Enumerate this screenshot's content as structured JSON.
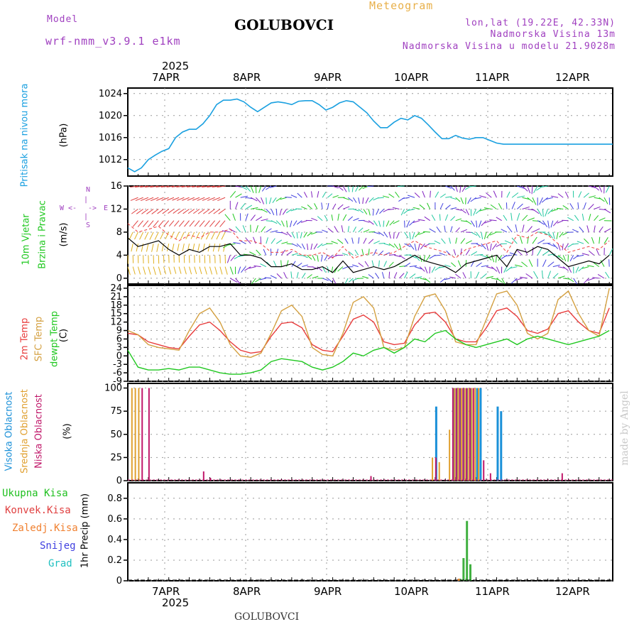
{
  "header": {
    "model_label": "Model",
    "model_name": "wrf-nmm_v3.9.1 e1km",
    "station": "GOLUBOVCI",
    "meteogram_label": "Meteogram",
    "lonlat": "lon,lat (19.22E, 42.33N)",
    "altitude": "Nadmorska Visina 13m",
    "altitude_model": "Nadmorska Visina u modelu 21.9028m"
  },
  "footer": {
    "station": "GOLUBOVCI"
  },
  "watermark": "made by Angel",
  "days": {
    "year": "2025",
    "labels": [
      "7APR",
      "8APR",
      "9APR",
      "10APR",
      "11APR",
      "12APR"
    ]
  },
  "colors": {
    "pressure": "#1aa0e0",
    "temp2m": "#e83c3c",
    "sfc": "#d4a040",
    "dewpt": "#20c820",
    "cloud_high": "#1a90d8",
    "cloud_mid": "#e0a030",
    "cloud_low": "#c0186a",
    "precip_total": "#40b040",
    "precip_conv": "#e04040",
    "precip_frozen": "#f08030",
    "snow": "#4040e0",
    "graupel": "#20c0c0",
    "wind_speed": "#000000",
    "gust": "#f04040"
  },
  "labels": {
    "pressure": "Pritisak na nivou mora",
    "pressure_unit": "(hPa)",
    "wind1": "10m Vjetar",
    "wind2": "Brzina i Pravac",
    "wind_unit": "(m/s)",
    "compass_n": "N",
    "compass_w": "W",
    "compass_e": "E",
    "compass_s": "S",
    "temp": "2m Temp",
    "sfc": "SFC Temp",
    "dew": "dewpt Temp",
    "temp_unit": "(C)",
    "cl_high": "Visoka Oblacnost",
    "cl_mid": "Srednja Oblacnost",
    "cl_low": "Niska Oblacnost",
    "cloud_unit": "(%)",
    "prec_total": "Ukupna Kisa",
    "prec_conv": "Konvek.Kisa",
    "prec_frozen": "Zaledj.Kisa",
    "prec_snow": "Snijeg",
    "prec_grad": "Grad",
    "prec_unit": "1hr Precip (mm)"
  },
  "chart_data": [
    {
      "type": "line",
      "panel": "pressure",
      "x": [
        0,
        2,
        4,
        6,
        8,
        10,
        12,
        14,
        16,
        18,
        20,
        22,
        24,
        26,
        28,
        30,
        32,
        34,
        36,
        38,
        40,
        42,
        44,
        46,
        48,
        50,
        52,
        54,
        56,
        58,
        60,
        62,
        64,
        66,
        68,
        70,
        72,
        74,
        76,
        78,
        80,
        82,
        84,
        86,
        88,
        90,
        92,
        94,
        96,
        98,
        100,
        102,
        104,
        106,
        108,
        110,
        112,
        114,
        116,
        118,
        120,
        122,
        124,
        126,
        128,
        130,
        132,
        134,
        136,
        138,
        140,
        142
      ],
      "series": [
        {
          "values": [
            1010.5,
            1009.8,
            1010.5,
            1012,
            1012.8,
            1013.5,
            1014,
            1016,
            1017,
            1017.5,
            1017.5,
            1018.5,
            1020,
            1022,
            1022.8,
            1022.8,
            1023,
            1022.5,
            1021.5,
            1020.7,
            1021.5,
            1022.3,
            1022.5,
            1022.3,
            1022.0,
            1022.6,
            1022.7,
            1022.7,
            1022.0,
            1021.0,
            1021.5,
            1022.3,
            1022.7,
            1022.5,
            1021.5,
            1020.5,
            1019.0,
            1017.8,
            1017.8,
            1018.8,
            1019.5,
            1019.2,
            1020,
            1019.5,
            1018.3,
            1017,
            1015.8,
            1015.8,
            1016.4,
            1015.9,
            1015.7,
            1016,
            1016,
            1015.5,
            1015.0,
            1014.8,
            1014.8,
            1014.8,
            1014.8,
            1014.8,
            1014.8,
            1014.8,
            1014.8,
            1014.8,
            1014.8,
            1014.8,
            1014.8,
            1014.8,
            1014.8,
            1014.8,
            1014.8,
            1014.8
          ]
        }
      ],
      "xlim": [
        0,
        142
      ],
      "ylim": [
        1009,
        1025
      ],
      "yticks": [
        1012,
        1016,
        1020,
        1024
      ],
      "grid": true
    },
    {
      "type": "line",
      "panel": "wind",
      "x": [
        0,
        3,
        6,
        9,
        12,
        15,
        18,
        21,
        24,
        27,
        30,
        33,
        36,
        39,
        42,
        45,
        48,
        51,
        54,
        57,
        60,
        63,
        66,
        69,
        72,
        75,
        78,
        81,
        84,
        87,
        90,
        93,
        96,
        99,
        102,
        105,
        108,
        111,
        114,
        117,
        120,
        123,
        126,
        129,
        132,
        135,
        138,
        141
      ],
      "series": [
        {
          "values": [
            7,
            5.5,
            6,
            6.5,
            5,
            4,
            5,
            4.5,
            5.5,
            5.5,
            6,
            4,
            4,
            3.5,
            2,
            2,
            2.5,
            1.5,
            1.5,
            2,
            1,
            3,
            1,
            1.5,
            2,
            1.5,
            2,
            3,
            4,
            3,
            2.5,
            2,
            1,
            2.5,
            3,
            3.5,
            4,
            2,
            5,
            4.5,
            5.5,
            5,
            3.5,
            2,
            2.5,
            3,
            2.5,
            4
          ]
        }
      ],
      "xlim": [
        0,
        142
      ],
      "ylim": [
        -1,
        16
      ],
      "yticks": [
        0,
        4,
        8,
        12,
        16
      ],
      "grid": true
    },
    {
      "type": "line",
      "panel": "temperature",
      "x": [
        0,
        3,
        6,
        9,
        12,
        15,
        18,
        21,
        24,
        27,
        30,
        33,
        36,
        39,
        42,
        45,
        48,
        51,
        54,
        57,
        60,
        63,
        66,
        69,
        72,
        75,
        78,
        81,
        84,
        87,
        90,
        93,
        96,
        99,
        102,
        105,
        108,
        111,
        114,
        117,
        120,
        123,
        126,
        129,
        132,
        135,
        138,
        141
      ],
      "series": [
        {
          "name": "2m Temp",
          "values": [
            8,
            7.5,
            5,
            4,
            3,
            2.5,
            7,
            11,
            12,
            9,
            5,
            2,
            1,
            1.5,
            7,
            11.5,
            12,
            10,
            4,
            2,
            1.5,
            7,
            13,
            14.5,
            12,
            5,
            4,
            4.5,
            11,
            15,
            15.5,
            12,
            6,
            5,
            5,
            10,
            16,
            17,
            14,
            9,
            8,
            9.5,
            15,
            16,
            12,
            9,
            8,
            17
          ]
        },
        {
          "name": "SFC Temp",
          "values": [
            9,
            7.5,
            4,
            3,
            2.5,
            2,
            9,
            15,
            17,
            12,
            4,
            0,
            -0.5,
            1,
            8,
            16,
            18,
            14,
            3,
            0.5,
            0,
            8,
            19,
            21,
            17,
            3,
            2,
            3,
            14,
            21,
            22,
            16,
            5,
            4,
            4,
            13,
            22,
            23,
            18,
            8,
            6,
            8,
            20,
            23,
            15,
            9,
            7,
            24
          ]
        },
        {
          "name": "dewpt Temp",
          "values": [
            2,
            -4,
            -5,
            -5,
            -4.5,
            -5,
            -4,
            -4,
            -5,
            -6,
            -6.5,
            -6.5,
            -6,
            -5,
            -2,
            -1,
            -1.5,
            -2,
            -4,
            -5,
            -4,
            -2,
            1,
            0,
            2,
            3,
            1,
            3,
            6,
            5,
            8,
            9,
            6,
            4,
            3,
            4,
            5,
            6,
            4,
            6,
            7,
            6,
            5,
            4,
            5,
            6,
            7,
            9
          ]
        }
      ],
      "xlim": [
        0,
        142
      ],
      "ylim": [
        -9,
        25
      ],
      "yticks": [
        -9,
        -6,
        -3,
        0,
        3,
        6,
        9,
        12,
        15,
        18,
        21,
        24
      ],
      "grid": true
    },
    {
      "type": "bar",
      "panel": "cloud",
      "series": [
        {
          "name": "Visoka Oblacnost",
          "x": [
            90,
            95,
            96,
            97,
            98,
            99,
            100,
            102,
            103,
            108,
            109
          ],
          "values": [
            80,
            100,
            100,
            100,
            100,
            100,
            100,
            100,
            100,
            80,
            75
          ]
        },
        {
          "name": "Srednja Oblacnost",
          "x": [
            1,
            2,
            3,
            89,
            91,
            94,
            95.5,
            96.5,
            97.5,
            98.5,
            99.5,
            100.5,
            101.5,
            102.5
          ],
          "values": [
            100,
            100,
            100,
            25,
            20,
            55,
            100,
            100,
            100,
            100,
            100,
            100,
            100,
            100
          ]
        },
        {
          "name": "Niska Oblacnost",
          "x": [
            4,
            6,
            22,
            24,
            71,
            90,
            95,
            96,
            97,
            98,
            99,
            100,
            101,
            104,
            106,
            127
          ],
          "values": [
            100,
            100,
            10,
            3,
            5,
            25,
            100,
            100,
            100,
            100,
            100,
            100,
            100,
            22,
            8,
            8
          ]
        }
      ],
      "xlim": [
        0,
        142
      ],
      "ylim": [
        0,
        105
      ],
      "yticks": [
        0,
        25,
        50,
        75,
        100
      ],
      "grid": true
    },
    {
      "type": "bar",
      "panel": "precip",
      "series": [
        {
          "name": "Ukupna Kisa",
          "x": [
            97,
            98,
            99,
            100
          ],
          "values": [
            0.02,
            0.22,
            0.58,
            0.16
          ]
        },
        {
          "name": "Zaledj.Kisa",
          "x": [
            97
          ],
          "values": [
            0.02
          ]
        }
      ],
      "xlim": [
        0,
        142
      ],
      "ylim": [
        0,
        0.95
      ],
      "yticks": [
        0,
        0.2,
        0.4,
        0.6,
        0.8
      ],
      "grid": true
    }
  ]
}
